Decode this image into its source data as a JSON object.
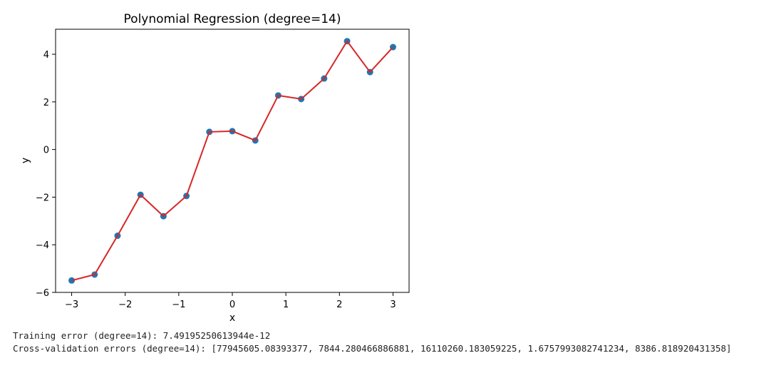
{
  "chart_data": {
    "type": "scatter",
    "title": "Polynomial Regression (degree=14)",
    "xlabel": "x",
    "ylabel": "y",
    "xlim": [
      -3.3,
      3.3
    ],
    "ylim": [
      -6,
      5.05
    ],
    "xticks": [
      "−3",
      "−2",
      "−1",
      "0",
      "1",
      "2",
      "3"
    ],
    "xtick_values": [
      -3,
      -2,
      -1,
      0,
      1,
      2,
      3
    ],
    "yticks": [
      "−6",
      "−4",
      "−2",
      "0",
      "2",
      "4"
    ],
    "ytick_values": [
      -6,
      -4,
      -2,
      0,
      2,
      4
    ],
    "grid": false,
    "x": [
      -3.0,
      -2.571,
      -2.143,
      -1.714,
      -1.286,
      -0.857,
      -0.429,
      0.0,
      0.429,
      0.857,
      1.286,
      1.714,
      2.143,
      2.571,
      3.0
    ],
    "series": [
      {
        "values": [
          -5.5,
          -5.25,
          -3.62,
          -1.9,
          -2.8,
          -1.95,
          0.74,
          0.77,
          0.38,
          2.27,
          2.12,
          2.98,
          4.55,
          3.25,
          4.3
        ],
        "color": "#1f77b4",
        "kind": "scatter"
      },
      {
        "values": [
          -5.5,
          -5.25,
          -3.62,
          -1.9,
          -2.8,
          -1.95,
          0.74,
          0.77,
          0.38,
          2.27,
          2.12,
          2.98,
          4.55,
          3.25,
          4.3
        ],
        "color": "#d62728",
        "kind": "line"
      }
    ]
  },
  "output": {
    "training_error": "Training error (degree=14): 7.49195250613944e-12",
    "cv_errors": "Cross-validation errors (degree=14): [77945605.08393377, 7844.280466886881, 16110260.183059225, 1.6757993082741234, 8386.818920431358]"
  }
}
